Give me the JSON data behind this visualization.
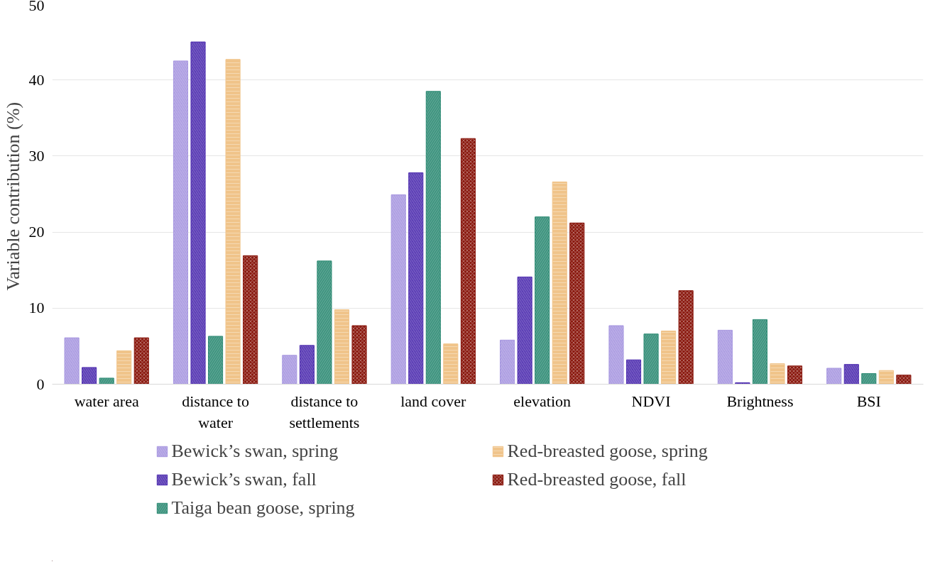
{
  "chart_data": {
    "type": "bar",
    "ylabel": "Variable  contribution (%)",
    "categories": [
      "water area",
      "distance to water",
      "distance to settlements",
      "land cover",
      "elevation",
      "NDVI",
      "Brightness",
      "BSI"
    ],
    "series": [
      {
        "name": "Bewick’s swan, spring",
        "color": "#a898e0",
        "values": [
          6.1,
          42.5,
          3.8,
          24.9,
          5.8,
          7.7,
          7.1,
          2.1
        ]
      },
      {
        "name": "Bewick’s swan, fall",
        "color": "#5030b0",
        "values": [
          2.2,
          45.0,
          5.1,
          27.8,
          14.1,
          3.2,
          0.2,
          2.6
        ]
      },
      {
        "name": "Taiga bean goose, spring",
        "color": "#2e8b74",
        "values": [
          0.8,
          6.3,
          16.2,
          38.5,
          22.0,
          6.6,
          8.5,
          1.4
        ]
      },
      {
        "name": "Red-breasted goose, spring",
        "color": "#f0c48a",
        "values": [
          4.4,
          42.7,
          9.8,
          5.3,
          26.6,
          7.0,
          2.7,
          1.8
        ]
      },
      {
        "name": "Red-breasted goose, fall",
        "color": "#8b1a10",
        "values": [
          6.1,
          16.9,
          7.7,
          32.3,
          21.2,
          12.3,
          2.4,
          1.2
        ]
      }
    ],
    "ylim": [
      0,
      50
    ],
    "yticks": [
      0,
      10,
      20,
      30,
      40,
      50
    ],
    "grid": "y",
    "legend": "bottom"
  }
}
